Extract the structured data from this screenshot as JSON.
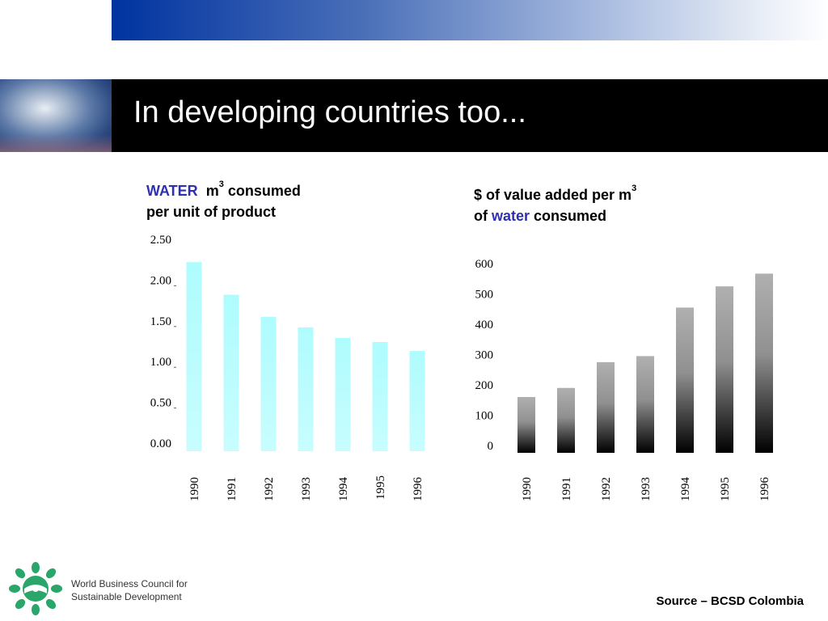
{
  "slide_title": "In developing countries too...",
  "left_title": {
    "word_colored": "WATER",
    "m": "m",
    "exp": "3",
    "rest": " consumed",
    "line2": "per unit of product"
  },
  "right_title": {
    "line1": "$ of value added per m",
    "exp": "3",
    "of": "of ",
    "word_colored": "water",
    "rest": " consumed"
  },
  "source": "Source – BCSD Colombia",
  "org": {
    "line1": "World Business Council for",
    "line2": "Sustainable Development"
  },
  "colors": {
    "title_bar": "#000000",
    "accent_blue": "#2e2fb4",
    "left_bar": "#aefcfe"
  },
  "chart_data": [
    {
      "type": "bar",
      "categories": [
        "1990",
        "1991",
        "1992",
        "1993",
        "1994",
        "1995",
        "1996"
      ],
      "values": [
        2.22,
        1.82,
        1.55,
        1.42,
        1.29,
        1.24,
        1.13
      ],
      "ylim": [
        0,
        2.5
      ],
      "yticks": [
        "0.00",
        "0.50",
        "1.00",
        "1.50",
        "2.00",
        "2.50"
      ]
    },
    {
      "type": "bar",
      "categories": [
        "1990",
        "1991",
        "1992",
        "1993",
        "1994",
        "1995",
        "1996"
      ],
      "values": [
        160,
        190,
        275,
        295,
        455,
        525,
        567
      ],
      "ylim": [
        0,
        600
      ],
      "yticks": [
        "0",
        "100",
        "200",
        "300",
        "400",
        "500",
        "600"
      ]
    }
  ]
}
